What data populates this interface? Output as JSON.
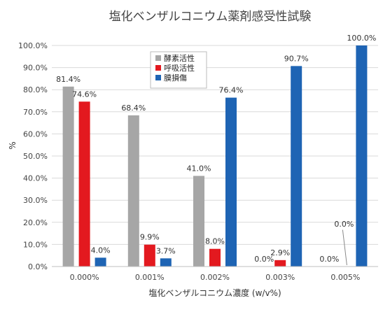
{
  "chart_data": {
    "type": "bar",
    "title": "塩化ベンザルコニウム薬剤感受性試験",
    "xlabel": "塩化ベンザルコニウム濃度 (w/v%)",
    "ylabel": "%",
    "ylim": [
      0,
      100
    ],
    "y_ticks": [
      "0.0%",
      "10.0%",
      "20.0%",
      "30.0%",
      "40.0%",
      "50.0%",
      "60.0%",
      "70.0%",
      "80.0%",
      "90.0%",
      "100.0%"
    ],
    "grid": true,
    "legend_position": "top-left",
    "categories": [
      "0.000%",
      "0.001%",
      "0.002%",
      "0.003%",
      "0.005%"
    ],
    "series": [
      {
        "name": "酵素活性",
        "color": "#a6a6a6",
        "values": [
          81.4,
          68.4,
          41.0,
          0.0,
          0.0
        ],
        "labels": [
          "81.4%",
          "68.4%",
          "41.0%",
          "0.0%",
          "0.0%"
        ]
      },
      {
        "name": "呼吸活性",
        "color": "#e3191f",
        "values": [
          74.6,
          9.9,
          8.0,
          2.9,
          0.0
        ],
        "labels": [
          "74.6%",
          "9.9%",
          "8.0%",
          "2.9%",
          "0.0%"
        ]
      },
      {
        "name": "膜損傷",
        "color": "#1e64b4",
        "values": [
          4.0,
          3.7,
          76.4,
          90.7,
          100.0
        ],
        "labels": [
          "4.0%",
          "3.7%",
          "76.4%",
          "90.7%",
          "100.0%"
        ]
      }
    ]
  }
}
